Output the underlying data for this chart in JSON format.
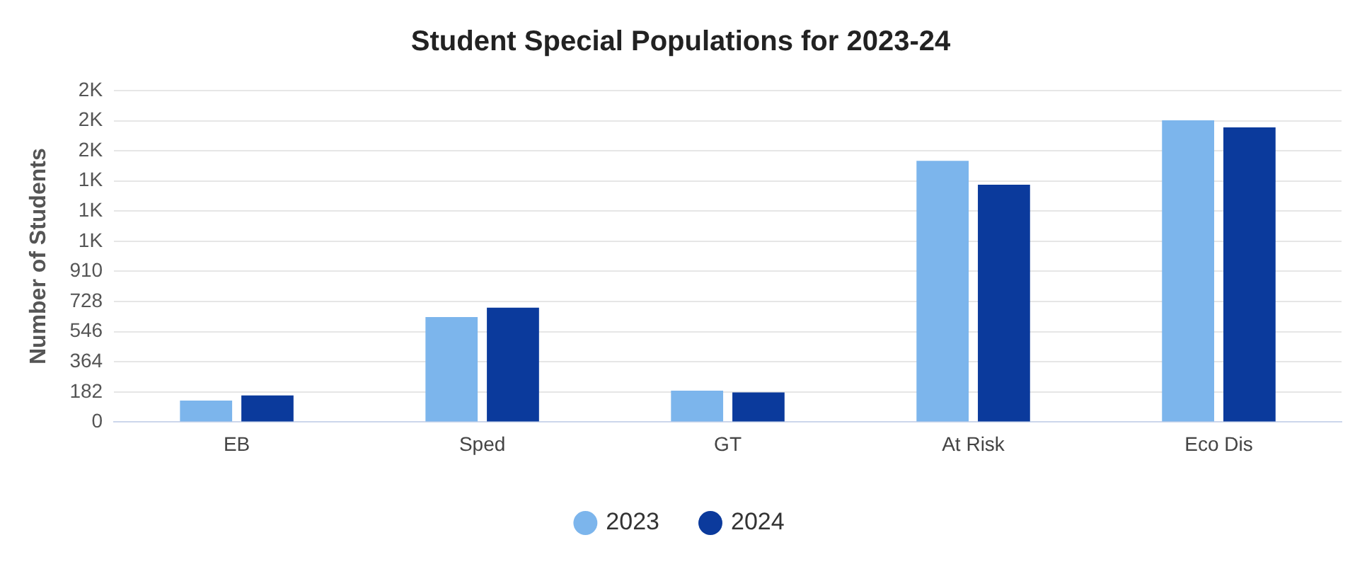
{
  "chart_data": {
    "type": "bar",
    "title": "Student Special Populations for 2023-24",
    "ylabel": "Number of Students",
    "categories": [
      "EB",
      "Sped",
      "GT",
      "At Risk",
      "Eco Dis"
    ],
    "series": [
      {
        "name": "2023",
        "color": "#7cb5ec",
        "values": [
          130,
          634,
          190,
          1578,
          1823
        ]
      },
      {
        "name": "2024",
        "color": "#0b3a9c",
        "values": [
          161,
          691,
          179,
          1434,
          1780
        ]
      }
    ],
    "ylim": [
      0,
      2002
    ],
    "yticks": [
      0,
      182,
      364,
      546,
      728,
      910,
      {
        "value": 1092,
        "label": "1K"
      },
      {
        "value": 1274,
        "label": "1K"
      },
      {
        "value": 1456,
        "label": "1K"
      },
      {
        "value": 1638,
        "label": "2K"
      },
      {
        "value": 1820,
        "label": "2K"
      },
      {
        "value": 2002,
        "label": "2K"
      }
    ],
    "grid": "y",
    "legend": "bottom"
  }
}
